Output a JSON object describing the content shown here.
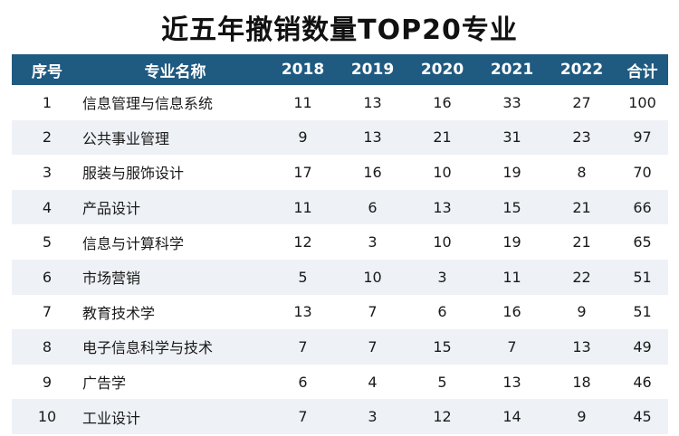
{
  "title": "近五年撤销数量TOP20专业",
  "table": {
    "headers": [
      "序号",
      "专业名称",
      "2018",
      "2019",
      "2020",
      "2021",
      "2022",
      "合计"
    ],
    "rows": [
      [
        "1",
        "信息管理与信息系统",
        "11",
        "13",
        "16",
        "33",
        "27",
        "100"
      ],
      [
        "2",
        "公共事业管理",
        "9",
        "13",
        "21",
        "31",
        "23",
        "97"
      ],
      [
        "3",
        "服装与服饰设计",
        "17",
        "16",
        "10",
        "19",
        "8",
        "70"
      ],
      [
        "4",
        "产品设计",
        "11",
        "6",
        "13",
        "15",
        "21",
        "66"
      ],
      [
        "5",
        "信息与计算科学",
        "12",
        "3",
        "10",
        "19",
        "21",
        "65"
      ],
      [
        "6",
        "市场营销",
        "5",
        "10",
        "3",
        "11",
        "22",
        "51"
      ],
      [
        "7",
        "教育技术学",
        "13",
        "7",
        "6",
        "16",
        "9",
        "51"
      ],
      [
        "8",
        "电子信息科学与技术",
        "7",
        "7",
        "15",
        "7",
        "13",
        "49"
      ],
      [
        "9",
        "广告学",
        "6",
        "4",
        "5",
        "13",
        "18",
        "46"
      ],
      [
        "10",
        "工业设计",
        "7",
        "3",
        "12",
        "14",
        "9",
        "45"
      ]
    ]
  },
  "colors": {
    "header_bg": "#1f5a80",
    "header_text": "#ffffff",
    "stripe": "#eef1f5"
  }
}
